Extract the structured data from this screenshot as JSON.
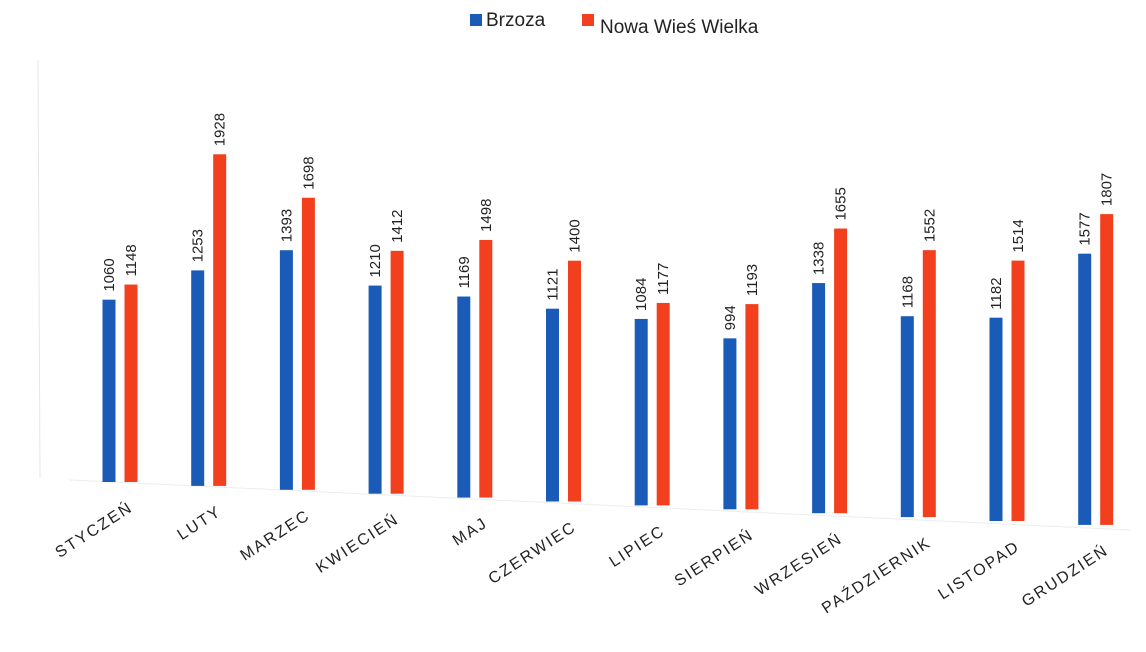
{
  "chart_data": {
    "type": "bar",
    "title": "",
    "xlabel": "",
    "ylabel": "",
    "categories": [
      "STYCZEŃ",
      "LUTY",
      "MARZEC",
      "KWIECIEŃ",
      "MAJ",
      "CZERWIEC",
      "LIPIEC",
      "SIERPIEŃ",
      "WRZESIEŃ",
      "PAŹDZIERNIK",
      "LISTOPAD",
      "GRUDZIEŃ"
    ],
    "series": [
      {
        "name": "Brzoza",
        "color": "#1a5bb8",
        "values": [
          1060,
          1253,
          1393,
          1210,
          1169,
          1121,
          1084,
          994,
          1338,
          1168,
          1182,
          1577
        ]
      },
      {
        "name": "Nowa Wieś Wielka",
        "color": "#f2401f",
        "values": [
          1148,
          1928,
          1698,
          1412,
          1498,
          1400,
          1177,
          1193,
          1655,
          1552,
          1514,
          1807
        ]
      }
    ],
    "ylim": [
      0,
      2000
    ],
    "grid": false,
    "legend_position": "top"
  }
}
